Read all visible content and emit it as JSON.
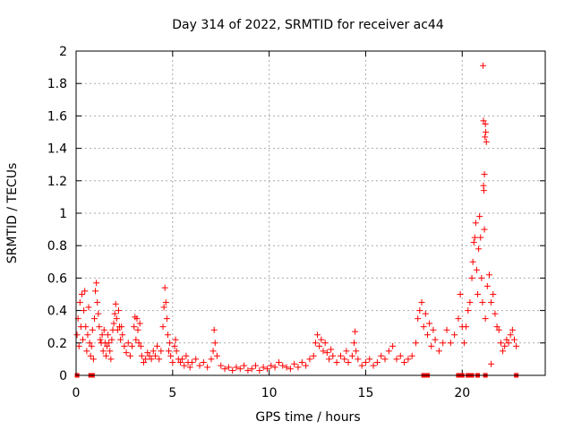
{
  "chart_data": {
    "type": "scatter",
    "title": "Day 314 of 2022, SRMTID for receiver ac44",
    "xlabel": "GPS time / hours",
    "ylabel": "SRMTID / TECUs",
    "xlim": [
      0,
      24.3
    ],
    "ylim": [
      0,
      2
    ],
    "xticks": [
      0,
      5,
      10,
      15,
      20
    ],
    "yticks": [
      0,
      0.2,
      0.4,
      0.6,
      0.8,
      1,
      1.2,
      1.4,
      1.6,
      1.8,
      2
    ],
    "xtick_labels": [
      "0",
      "5",
      "10",
      "15",
      "20"
    ],
    "ytick_labels": [
      "0",
      "0.2",
      "0.4",
      "0.6",
      "0.8",
      "1",
      "1.2",
      "1.4",
      "1.6",
      "1.8",
      "2"
    ],
    "grid": true,
    "marker": "+",
    "color": "#ff0000",
    "series": [
      {
        "name": "SRMTID",
        "points": [
          [
            0.05,
            0.25
          ],
          [
            0.1,
            0.35
          ],
          [
            0.15,
            0.18
          ],
          [
            0.2,
            0.45
          ],
          [
            0.25,
            0.3
          ],
          [
            0.3,
            0.5
          ],
          [
            0.35,
            0.22
          ],
          [
            0.4,
            0.4
          ],
          [
            0.45,
            0.52
          ],
          [
            0.5,
            0.3
          ],
          [
            0.55,
            0.15
          ],
          [
            0.6,
            0.25
          ],
          [
            0.65,
            0.42
          ],
          [
            0.7,
            0.2
          ],
          [
            0.75,
            0.12
          ],
          [
            0.8,
            0.18
          ],
          [
            0.85,
            0.28
          ],
          [
            0.9,
            0.1
          ],
          [
            0.95,
            0.35
          ],
          [
            1.0,
            0.52
          ],
          [
            1.05,
            0.57
          ],
          [
            1.1,
            0.45
          ],
          [
            1.15,
            0.38
          ],
          [
            1.2,
            0.3
          ],
          [
            1.25,
            0.22
          ],
          [
            1.3,
            0.2
          ],
          [
            1.35,
            0.25
          ],
          [
            1.4,
            0.15
          ],
          [
            1.45,
            0.28
          ],
          [
            1.5,
            0.2
          ],
          [
            1.55,
            0.12
          ],
          [
            1.6,
            0.18
          ],
          [
            1.65,
            0.25
          ],
          [
            1.7,
            0.2
          ],
          [
            1.75,
            0.15
          ],
          [
            1.8,
            0.1
          ],
          [
            1.85,
            0.22
          ],
          [
            1.9,
            0.28
          ],
          [
            1.95,
            0.32
          ],
          [
            2.0,
            0.38
          ],
          [
            2.05,
            0.44
          ],
          [
            2.1,
            0.35
          ],
          [
            2.15,
            0.28
          ],
          [
            2.2,
            0.4
          ],
          [
            2.25,
            0.3
          ],
          [
            2.3,
            0.22
          ],
          [
            2.35,
            0.3
          ],
          [
            2.4,
            0.25
          ],
          [
            2.5,
            0.18
          ],
          [
            2.6,
            0.14
          ],
          [
            2.7,
            0.2
          ],
          [
            2.8,
            0.12
          ],
          [
            2.9,
            0.18
          ],
          [
            3.0,
            0.3
          ],
          [
            3.05,
            0.36
          ],
          [
            3.1,
            0.22
          ],
          [
            3.15,
            0.35
          ],
          [
            3.2,
            0.28
          ],
          [
            3.25,
            0.2
          ],
          [
            3.3,
            0.32
          ],
          [
            3.35,
            0.18
          ],
          [
            3.4,
            0.12
          ],
          [
            3.5,
            0.08
          ],
          [
            3.6,
            0.1
          ],
          [
            3.7,
            0.14
          ],
          [
            3.8,
            0.12
          ],
          [
            3.9,
            0.1
          ],
          [
            4.0,
            0.15
          ],
          [
            4.1,
            0.12
          ],
          [
            4.2,
            0.18
          ],
          [
            4.3,
            0.1
          ],
          [
            4.4,
            0.15
          ],
          [
            4.5,
            0.3
          ],
          [
            4.55,
            0.42
          ],
          [
            4.6,
            0.54
          ],
          [
            4.65,
            0.45
          ],
          [
            4.7,
            0.35
          ],
          [
            4.75,
            0.25
          ],
          [
            4.8,
            0.15
          ],
          [
            4.85,
            0.2
          ],
          [
            4.9,
            0.12
          ],
          [
            5.0,
            0.08
          ],
          [
            5.1,
            0.18
          ],
          [
            5.15,
            0.22
          ],
          [
            5.2,
            0.15
          ],
          [
            5.3,
            0.1
          ],
          [
            5.4,
            0.08
          ],
          [
            5.5,
            0.1
          ],
          [
            5.6,
            0.06
          ],
          [
            5.7,
            0.12
          ],
          [
            5.8,
            0.08
          ],
          [
            5.9,
            0.05
          ],
          [
            6.0,
            0.08
          ],
          [
            6.2,
            0.1
          ],
          [
            6.4,
            0.06
          ],
          [
            6.6,
            0.08
          ],
          [
            6.8,
            0.05
          ],
          [
            7.0,
            0.1
          ],
          [
            7.1,
            0.15
          ],
          [
            7.15,
            0.28
          ],
          [
            7.2,
            0.2
          ],
          [
            7.3,
            0.12
          ],
          [
            7.5,
            0.06
          ],
          [
            7.7,
            0.04
          ],
          [
            7.9,
            0.05
          ],
          [
            8.1,
            0.03
          ],
          [
            8.3,
            0.05
          ],
          [
            8.5,
            0.04
          ],
          [
            8.7,
            0.06
          ],
          [
            8.9,
            0.03
          ],
          [
            9.1,
            0.04
          ],
          [
            9.3,
            0.06
          ],
          [
            9.5,
            0.03
          ],
          [
            9.7,
            0.05
          ],
          [
            9.9,
            0.04
          ],
          [
            10.1,
            0.06
          ],
          [
            10.3,
            0.05
          ],
          [
            10.5,
            0.08
          ],
          [
            10.7,
            0.06
          ],
          [
            10.9,
            0.05
          ],
          [
            11.1,
            0.04
          ],
          [
            11.3,
            0.07
          ],
          [
            11.5,
            0.05
          ],
          [
            11.7,
            0.08
          ],
          [
            11.9,
            0.06
          ],
          [
            12.1,
            0.1
          ],
          [
            12.3,
            0.12
          ],
          [
            12.4,
            0.2
          ],
          [
            12.5,
            0.25
          ],
          [
            12.6,
            0.18
          ],
          [
            12.7,
            0.22
          ],
          [
            12.8,
            0.15
          ],
          [
            12.9,
            0.2
          ],
          [
            13.0,
            0.14
          ],
          [
            13.1,
            0.1
          ],
          [
            13.2,
            0.16
          ],
          [
            13.3,
            0.12
          ],
          [
            13.5,
            0.08
          ],
          [
            13.7,
            0.12
          ],
          [
            13.9,
            0.1
          ],
          [
            14.0,
            0.15
          ],
          [
            14.1,
            0.08
          ],
          [
            14.3,
            0.12
          ],
          [
            14.4,
            0.2
          ],
          [
            14.45,
            0.27
          ],
          [
            14.5,
            0.15
          ],
          [
            14.6,
            0.1
          ],
          [
            14.8,
            0.06
          ],
          [
            15.0,
            0.08
          ],
          [
            15.2,
            0.1
          ],
          [
            15.4,
            0.06
          ],
          [
            15.6,
            0.08
          ],
          [
            15.8,
            0.12
          ],
          [
            16.0,
            0.1
          ],
          [
            16.2,
            0.15
          ],
          [
            16.4,
            0.18
          ],
          [
            16.6,
            0.1
          ],
          [
            16.8,
            0.12
          ],
          [
            17.0,
            0.08
          ],
          [
            17.2,
            0.1
          ],
          [
            17.4,
            0.12
          ],
          [
            17.6,
            0.2
          ],
          [
            17.7,
            0.35
          ],
          [
            17.8,
            0.4
          ],
          [
            17.9,
            0.45
          ],
          [
            18.0,
            0.3
          ],
          [
            18.1,
            0.38
          ],
          [
            18.2,
            0.25
          ],
          [
            18.3,
            0.32
          ],
          [
            18.4,
            0.18
          ],
          [
            18.5,
            0.28
          ],
          [
            18.6,
            0.22
          ],
          [
            18.8,
            0.15
          ],
          [
            19.0,
            0.2
          ],
          [
            19.2,
            0.28
          ],
          [
            19.4,
            0.2
          ],
          [
            19.6,
            0.25
          ],
          [
            19.8,
            0.35
          ],
          [
            19.9,
            0.5
          ],
          [
            20.0,
            0.3
          ],
          [
            20.1,
            0.2
          ],
          [
            20.2,
            0.3
          ],
          [
            20.3,
            0.4
          ],
          [
            20.4,
            0.45
          ],
          [
            20.5,
            0.6
          ],
          [
            20.55,
            0.7
          ],
          [
            20.6,
            0.82
          ],
          [
            20.65,
            0.85
          ],
          [
            20.7,
            0.94
          ],
          [
            20.75,
            0.65
          ],
          [
            20.8,
            0.5
          ],
          [
            20.85,
            0.78
          ],
          [
            20.9,
            0.98
          ],
          [
            20.95,
            0.85
          ],
          [
            21.0,
            0.6
          ],
          [
            21.05,
            0.45
          ],
          [
            21.1,
            1.17
          ],
          [
            21.12,
            1.14
          ],
          [
            21.15,
            1.24
          ],
          [
            21.18,
            1.47
          ],
          [
            21.2,
            1.55
          ],
          [
            21.22,
            1.5
          ],
          [
            21.25,
            1.44
          ],
          [
            21.08,
            1.91
          ],
          [
            21.1,
            1.57
          ],
          [
            21.15,
            0.9
          ],
          [
            21.2,
            0.35
          ],
          [
            21.3,
            0.55
          ],
          [
            21.4,
            0.62
          ],
          [
            21.5,
            0.45
          ],
          [
            21.6,
            0.5
          ],
          [
            21.7,
            0.38
          ],
          [
            21.8,
            0.3
          ],
          [
            21.9,
            0.28
          ],
          [
            22.0,
            0.2
          ],
          [
            22.1,
            0.15
          ],
          [
            22.2,
            0.18
          ],
          [
            22.3,
            0.22
          ],
          [
            22.4,
            0.2
          ],
          [
            22.5,
            0.25
          ],
          [
            22.6,
            0.28
          ],
          [
            22.7,
            0.22
          ],
          [
            22.8,
            0.18
          ],
          [
            21.5,
            0.07
          ]
        ],
        "zero_markers": [
          0.05,
          0.75,
          0.85,
          18.0,
          18.2,
          19.8,
          20.0,
          20.3,
          20.5,
          20.8,
          21.2,
          22.8
        ]
      }
    ]
  }
}
